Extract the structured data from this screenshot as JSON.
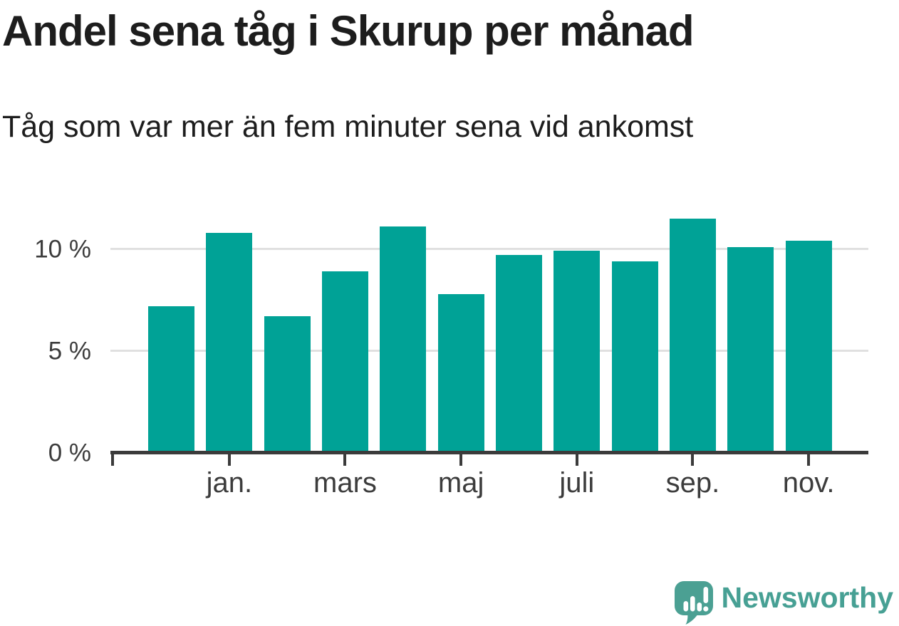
{
  "header": {
    "title": "Andel sena tåg i Skurup per månad",
    "subtitle": "Tåg som var mer än fem minuter sena vid ankomst"
  },
  "chart_data": {
    "type": "bar",
    "title": "Andel sena tåg i Skurup per månad",
    "subtitle": "Tåg som var mer än fem minuter sena vid ankomst",
    "unit": "%",
    "values": [
      7.2,
      10.8,
      6.7,
      8.9,
      11.1,
      7.8,
      9.7,
      9.9,
      9.4,
      11.5,
      10.1,
      10.4
    ],
    "bar_count": 12,
    "x_tick_labels": [
      "jan.",
      "mars",
      "maj",
      "juli",
      "sep.",
      "nov."
    ],
    "x_tick_bar_indices": [
      1,
      3,
      5,
      7,
      9,
      11
    ],
    "y_tick_labels": [
      "0 %",
      "5 %",
      "10 %"
    ],
    "y_tick_values": [
      0,
      5,
      10
    ],
    "ylim": [
      0,
      12
    ],
    "grid": "horizontal-only",
    "legend": "none",
    "bar_color": "#00a296"
  },
  "footer": {
    "brand": "Newsworthy",
    "brand_color": "#47a094",
    "logo_icon": "newsworthy-speech-bubble-bar-chart-icon"
  },
  "colors": {
    "background": "#ffffff",
    "bar": "#00a296",
    "gridline": "#e0e0e0",
    "axis": "#3b3b3b",
    "title_text": "#1d1d1d",
    "axis_label_text": "#3c3c3c",
    "logo_teal": "#4ba093"
  }
}
